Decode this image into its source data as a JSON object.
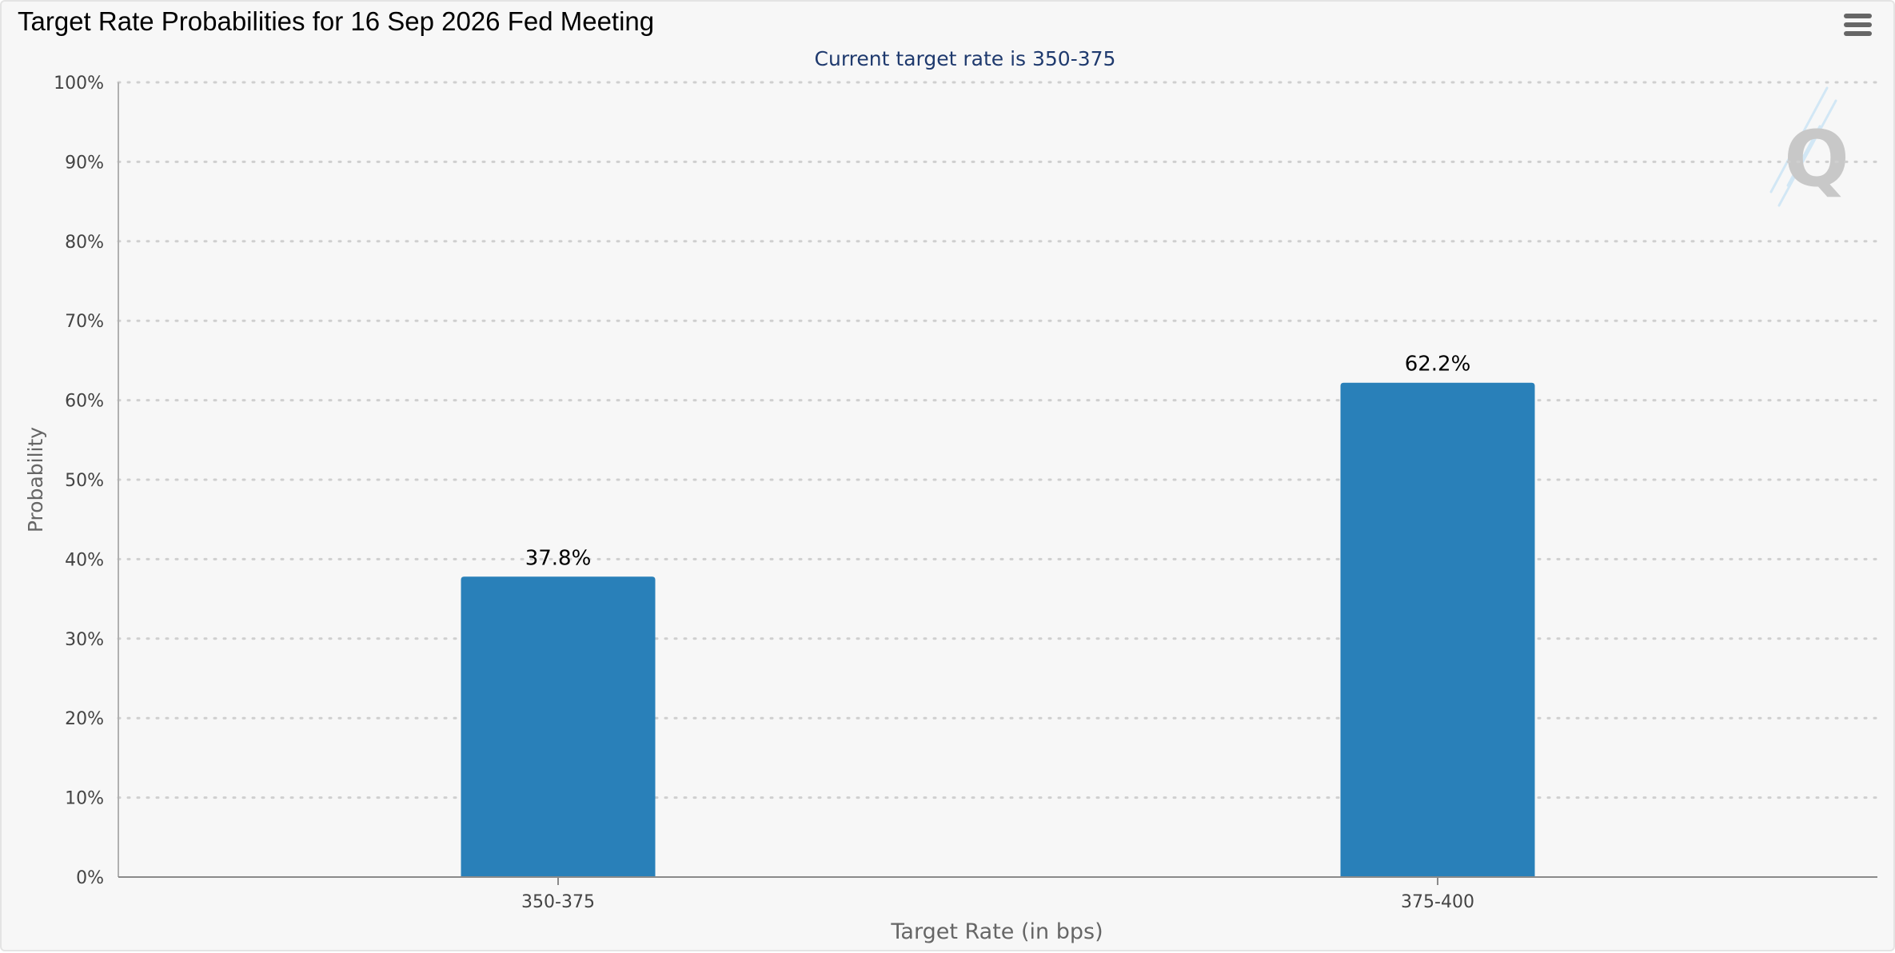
{
  "chart_data": {
    "type": "bar",
    "title": "Target Rate Probabilities for 16 Sep 2026 Fed Meeting",
    "subtitle": "Current target rate is 350-375",
    "xlabel": "Target Rate (in bps)",
    "ylabel": "Probability",
    "categories": [
      "350-375",
      "375-400"
    ],
    "values": [
      37.8,
      62.2
    ],
    "data_labels": [
      "37.8%",
      "62.2%"
    ],
    "ylim": [
      0,
      100
    ],
    "yticks": [
      0,
      10,
      20,
      30,
      40,
      50,
      60,
      70,
      80,
      90,
      100
    ],
    "ytick_labels": [
      "0%",
      "10%",
      "20%",
      "30%",
      "40%",
      "50%",
      "60%",
      "70%",
      "80%",
      "90%",
      "100%"
    ],
    "grid": true,
    "legend": "none",
    "colors": {
      "bar": "#2980b9",
      "subtitle": "#1f3a6e",
      "axis_text": "#444444",
      "axis_title": "#666666",
      "grid": "#cfcfcf",
      "background": "#f7f7f7"
    }
  },
  "icons": {
    "menu": "hamburger-menu-icon",
    "watermark": "q-logo-icon"
  }
}
